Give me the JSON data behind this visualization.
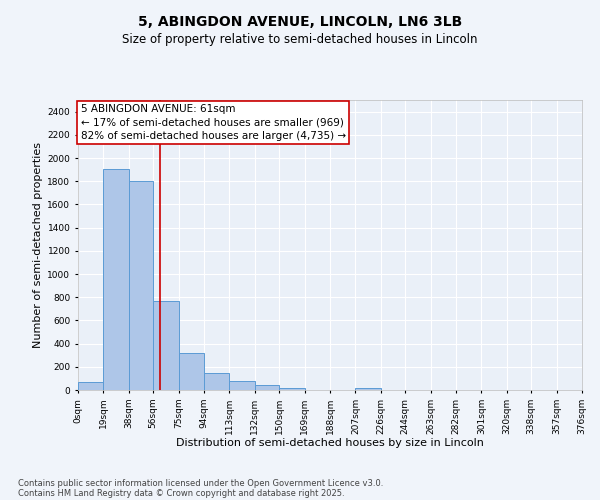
{
  "title_line1": "5, ABINGDON AVENUE, LINCOLN, LN6 3LB",
  "title_line2": "Size of property relative to semi-detached houses in Lincoln",
  "xlabel": "Distribution of semi-detached houses by size in Lincoln",
  "ylabel": "Number of semi-detached properties",
  "bar_color": "#aec6e8",
  "bar_edge_color": "#5b9bd5",
  "background_color": "#eaf0f8",
  "grid_color": "#ffffff",
  "vline_color": "#cc0000",
  "vline_x": 61,
  "annotation_title": "5 ABINGDON AVENUE: 61sqm",
  "annotation_line1": "← 17% of semi-detached houses are smaller (969)",
  "annotation_line2": "82% of semi-detached houses are larger (4,735) →",
  "bin_edges": [
    0,
    19,
    38,
    56,
    75,
    94,
    113,
    132,
    150,
    169,
    188,
    207,
    226,
    244,
    263,
    282,
    301,
    320,
    338,
    357,
    376
  ],
  "bin_labels": [
    "0sqm",
    "19sqm",
    "38sqm",
    "56sqm",
    "75sqm",
    "94sqm",
    "113sqm",
    "132sqm",
    "150sqm",
    "169sqm",
    "188sqm",
    "207sqm",
    "226sqm",
    "244sqm",
    "263sqm",
    "282sqm",
    "301sqm",
    "320sqm",
    "338sqm",
    "357sqm",
    "376sqm"
  ],
  "bar_heights": [
    65,
    1905,
    1800,
    770,
    320,
    150,
    80,
    40,
    20,
    0,
    0,
    20,
    0,
    0,
    0,
    0,
    0,
    0,
    0,
    0
  ],
  "ylim": [
    0,
    2500
  ],
  "yticks": [
    0,
    200,
    400,
    600,
    800,
    1000,
    1200,
    1400,
    1600,
    1800,
    2000,
    2200,
    2400
  ],
  "footnote_line1": "Contains HM Land Registry data © Crown copyright and database right 2025.",
  "footnote_line2": "Contains public sector information licensed under the Open Government Licence v3.0.",
  "title_fontsize": 10,
  "subtitle_fontsize": 8.5,
  "axis_label_fontsize": 8,
  "tick_fontsize": 6.5,
  "annotation_fontsize": 7.5,
  "footnote_fontsize": 6.0
}
